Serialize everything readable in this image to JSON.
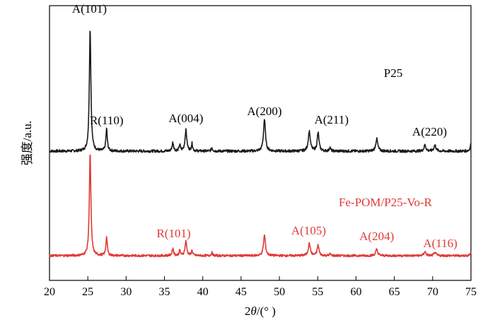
{
  "chart_data": {
    "type": "line",
    "xlabel_prefix": "2",
    "xlabel_italic": "θ",
    "xlabel_suffix": "/(° )",
    "ylabel": "强度/a.u.",
    "xlim": [
      20,
      75
    ],
    "x_ticks": [
      20,
      25,
      30,
      35,
      40,
      45,
      50,
      55,
      60,
      65,
      70,
      75
    ],
    "y_ticks_shown": false,
    "grid": false,
    "series": [
      {
        "name": "P25",
        "color": "#1a1a1a",
        "baseline": 0.0,
        "peaks": [
          {
            "x": 25.3,
            "height": 1.0,
            "width": 0.12
          },
          {
            "x": 27.45,
            "height": 0.18,
            "width": 0.11
          },
          {
            "x": 36.1,
            "height": 0.07,
            "width": 0.12
          },
          {
            "x": 37.0,
            "height": 0.05,
            "width": 0.1
          },
          {
            "x": 37.8,
            "height": 0.17,
            "width": 0.14
          },
          {
            "x": 38.6,
            "height": 0.06,
            "width": 0.1
          },
          {
            "x": 41.2,
            "height": 0.03,
            "width": 0.1
          },
          {
            "x": 48.05,
            "height": 0.26,
            "width": 0.15
          },
          {
            "x": 53.9,
            "height": 0.16,
            "width": 0.16
          },
          {
            "x": 55.05,
            "height": 0.15,
            "width": 0.14
          },
          {
            "x": 56.6,
            "height": 0.03,
            "width": 0.1
          },
          {
            "x": 62.7,
            "height": 0.1,
            "width": 0.16
          },
          {
            "x": 69.0,
            "height": 0.05,
            "width": 0.15
          },
          {
            "x": 70.3,
            "height": 0.05,
            "width": 0.15
          },
          {
            "x": 75.0,
            "height": 0.06,
            "width": 0.12
          }
        ]
      },
      {
        "name": "Fe-POM/P25-Vo-R",
        "color": "#e03a36",
        "baseline": 0.0,
        "peaks": [
          {
            "x": 25.3,
            "height": 1.0,
            "width": 0.12
          },
          {
            "x": 27.45,
            "height": 0.18,
            "width": 0.11
          },
          {
            "x": 36.1,
            "height": 0.07,
            "width": 0.12
          },
          {
            "x": 37.0,
            "height": 0.05,
            "width": 0.1
          },
          {
            "x": 37.8,
            "height": 0.14,
            "width": 0.14
          },
          {
            "x": 38.6,
            "height": 0.05,
            "width": 0.1
          },
          {
            "x": 41.2,
            "height": 0.03,
            "width": 0.1
          },
          {
            "x": 48.05,
            "height": 0.2,
            "width": 0.15
          },
          {
            "x": 53.9,
            "height": 0.12,
            "width": 0.16
          },
          {
            "x": 55.05,
            "height": 0.1,
            "width": 0.14
          },
          {
            "x": 56.6,
            "height": 0.02,
            "width": 0.1
          },
          {
            "x": 62.7,
            "height": 0.06,
            "width": 0.16
          },
          {
            "x": 69.0,
            "height": 0.04,
            "width": 0.15
          },
          {
            "x": 70.3,
            "height": 0.03,
            "width": 0.15
          },
          {
            "x": 75.0,
            "height": 0.03,
            "width": 0.12
          }
        ]
      }
    ],
    "annotations": [
      {
        "text": "A(101)",
        "x": 25.3,
        "series": "P25",
        "color": "#000000"
      },
      {
        "text": "R(110)",
        "x": 27.45,
        "series": "P25",
        "color": "#000000"
      },
      {
        "text": "A(004)",
        "x": 37.8,
        "series": "P25",
        "color": "#000000"
      },
      {
        "text": "A(200)",
        "x": 48.05,
        "series": "P25",
        "color": "#000000"
      },
      {
        "text": "A(211)",
        "x": 55.05,
        "series": "P25",
        "color": "#000000"
      },
      {
        "text": "A(220)",
        "x": 69.6,
        "series": "P25",
        "color": "#000000"
      },
      {
        "text": "R(101)",
        "x": 36.2,
        "series": "Fe-POM/P25-Vo-R",
        "color": "#e03a36"
      },
      {
        "text": "A(105)",
        "x": 54.0,
        "series": "Fe-POM/P25-Vo-R",
        "color": "#e03a36"
      },
      {
        "text": "A(204)",
        "x": 62.7,
        "series": "Fe-POM/P25-Vo-R",
        "color": "#e03a36"
      },
      {
        "text": "A(116)",
        "x": 68.5,
        "series": "Fe-POM/P25-Vo-R",
        "color": "#e03a36"
      }
    ],
    "series_labels": [
      {
        "text": "P25",
        "color": "#000000"
      },
      {
        "text": "Fe-POM/P25-Vo-R",
        "color": "#e03a36"
      }
    ]
  }
}
